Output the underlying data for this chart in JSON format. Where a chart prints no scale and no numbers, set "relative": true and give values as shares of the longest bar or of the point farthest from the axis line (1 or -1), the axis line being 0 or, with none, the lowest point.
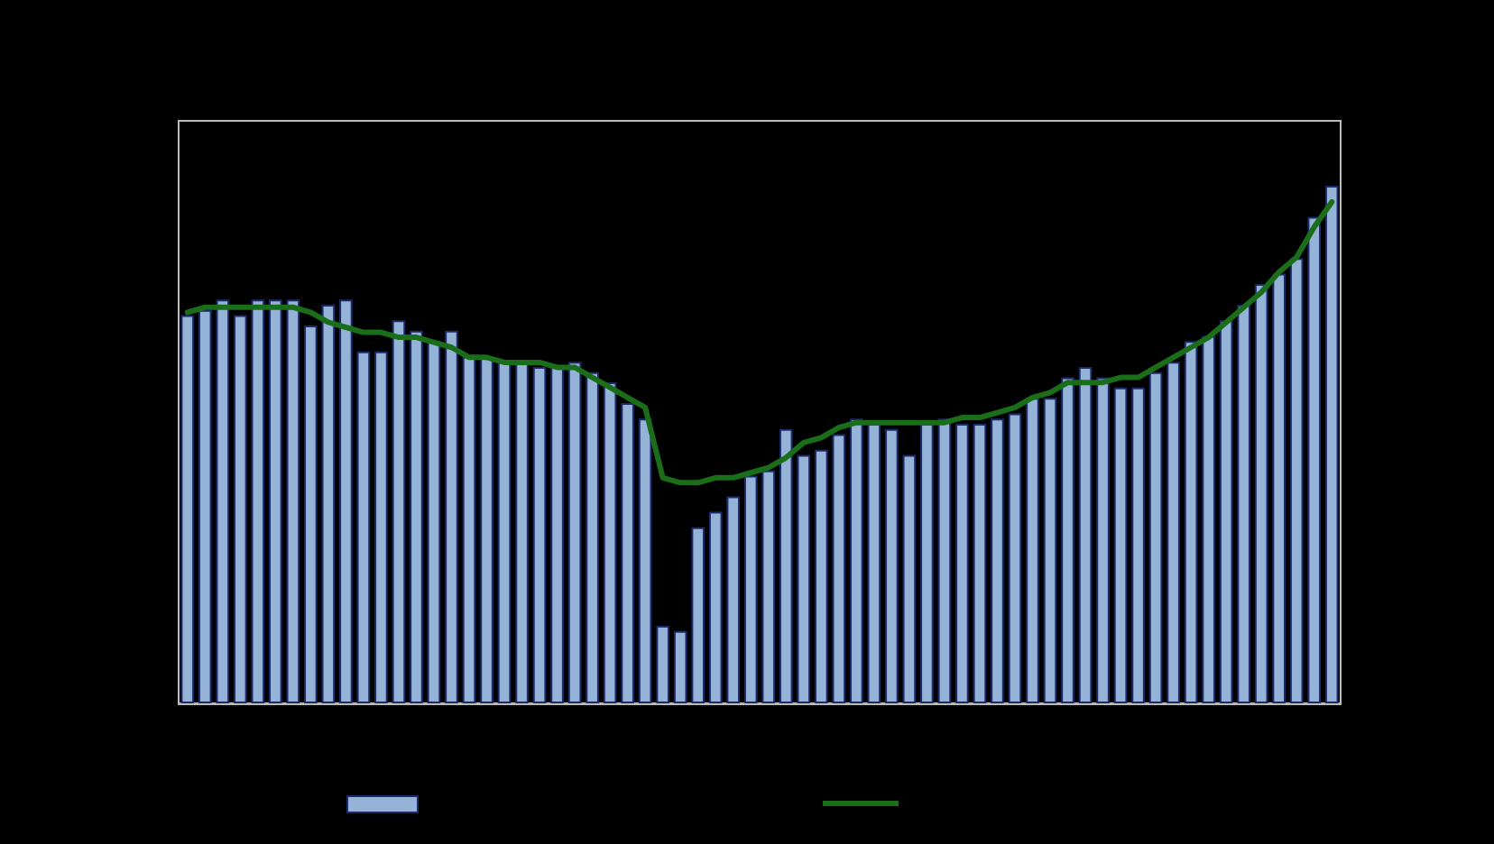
{
  "chart_data": [
    {
      "type": "bar",
      "relative": true,
      "categories": [
        null,
        null,
        null,
        null,
        null,
        null,
        null,
        null,
        null,
        null,
        null,
        null,
        null,
        null,
        null,
        null,
        null,
        null,
        null,
        null,
        null,
        null,
        null,
        null,
        null,
        null,
        null,
        null,
        null,
        null,
        null,
        null,
        null,
        null,
        null,
        null,
        null,
        null,
        null,
        null,
        null,
        null,
        null,
        null,
        null,
        null,
        null,
        null,
        null,
        null,
        null,
        null,
        null,
        null,
        null,
        null,
        null,
        null,
        null,
        null,
        null,
        null,
        null,
        null,
        null,
        null
      ],
      "series": [
        {
          "color": "#95b3d7",
          "values": [
            0.75,
            0.76,
            0.78,
            0.75,
            0.78,
            0.78,
            0.78,
            0.73,
            0.77,
            0.78,
            0.68,
            0.68,
            0.74,
            0.72,
            0.7,
            0.72,
            0.67,
            0.67,
            0.66,
            0.66,
            0.65,
            0.65,
            0.66,
            0.64,
            0.62,
            0.58,
            0.55,
            0.15,
            0.14,
            0.34,
            0.37,
            0.4,
            0.44,
            0.45,
            0.53,
            0.48,
            0.49,
            0.52,
            0.55,
            0.54,
            0.53,
            0.48,
            0.54,
            0.55,
            0.54,
            0.54,
            0.55,
            0.56,
            0.59,
            0.59,
            0.63,
            0.65,
            0.63,
            0.61,
            0.61,
            0.64,
            0.66,
            0.7,
            0.71,
            0.74,
            0.77,
            0.81,
            0.83,
            0.86,
            0.94,
            1
          ]
        }
      ]
    },
    {
      "type": "line",
      "relative": true,
      "marker": "none",
      "line_style": "solid",
      "categories": [
        null,
        null,
        null,
        null,
        null,
        null,
        null,
        null,
        null,
        null,
        null,
        null,
        null,
        null,
        null,
        null,
        null,
        null,
        null,
        null,
        null,
        null,
        null,
        null,
        null,
        null,
        null,
        null,
        null,
        null,
        null,
        null,
        null,
        null,
        null,
        null,
        null,
        null,
        null,
        null,
        null,
        null,
        null,
        null,
        null,
        null,
        null,
        null,
        null,
        null,
        null,
        null,
        null,
        null,
        null,
        null,
        null,
        null,
        null,
        null,
        null,
        null,
        null,
        null,
        null,
        null
      ],
      "series": [
        {
          "color": "#1a6e1a",
          "values": [
            0.78,
            0.79,
            0.79,
            0.79,
            0.79,
            0.79,
            0.79,
            0.78,
            0.76,
            0.75,
            0.74,
            0.74,
            0.73,
            0.73,
            0.72,
            0.71,
            0.69,
            0.69,
            0.68,
            0.68,
            0.68,
            0.67,
            0.67,
            0.65,
            0.63,
            0.61,
            0.59,
            0.45,
            0.44,
            0.44,
            0.45,
            0.45,
            0.46,
            0.47,
            0.49,
            0.52,
            0.53,
            0.55,
            0.56,
            0.56,
            0.56,
            0.56,
            0.56,
            0.56,
            0.57,
            0.57,
            0.58,
            0.59,
            0.61,
            0.62,
            0.64,
            0.64,
            0.64,
            0.65,
            0.65,
            0.67,
            0.69,
            0.71,
            0.73,
            0.76,
            0.79,
            0.82,
            0.86,
            0.89,
            0.95,
            1
          ]
        }
      ]
    }
  ]
}
